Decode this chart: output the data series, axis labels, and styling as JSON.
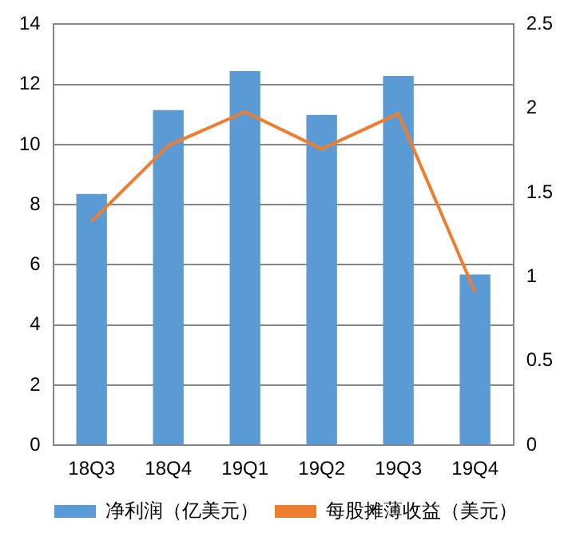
{
  "chart_data": {
    "type": "bar",
    "categories": [
      "18Q3",
      "18Q4",
      "19Q1",
      "19Q2",
      "19Q3",
      "19Q4"
    ],
    "series": [
      {
        "name": "净利润（亿美元）",
        "color": "#5b9bd5",
        "values": [
          8.36,
          11.15,
          12.44,
          10.99,
          12.28,
          5.68
        ]
      },
      {
        "name": "每股摊薄收益（美元）",
        "type": "line",
        "axis": "y2",
        "color": "#ed7d31",
        "values": [
          1.33,
          1.78,
          1.98,
          1.76,
          1.97,
          0.91
        ]
      }
    ],
    "ylim": [
      0,
      14
    ],
    "yticks": [
      0,
      2,
      4,
      6,
      8,
      10,
      12,
      14
    ],
    "y2lim": [
      0,
      2.5
    ],
    "y2ticks": [
      0,
      0.5,
      1,
      1.5,
      2,
      2.5
    ],
    "grid": "y",
    "legend": "bottom",
    "marker": "none",
    "line_style": "solid"
  }
}
